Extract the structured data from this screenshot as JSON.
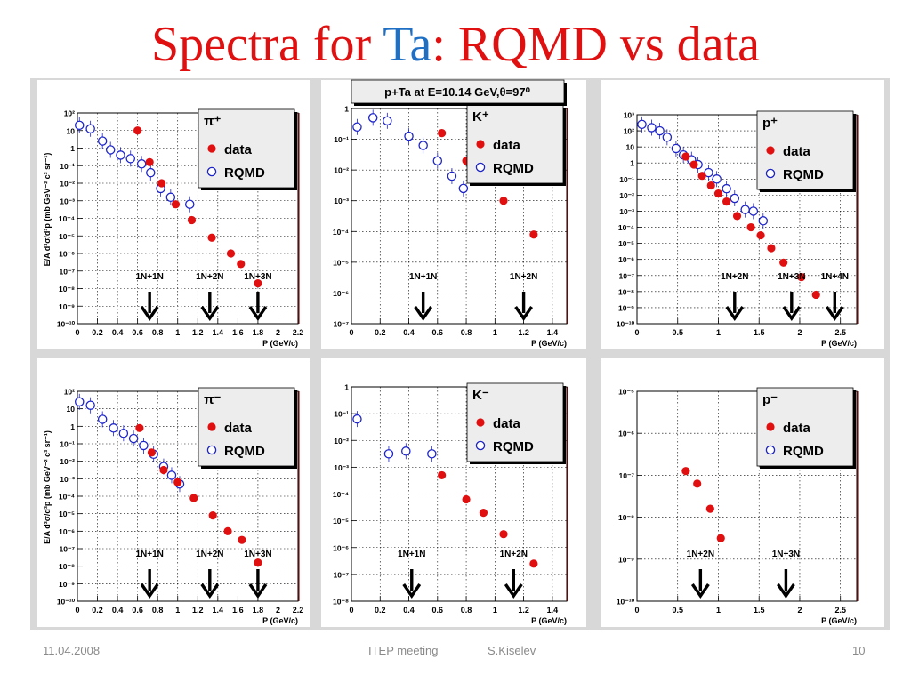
{
  "slide": {
    "title_pre": "Spectra for ",
    "title_ta": "Ta",
    "title_post": ": RQMD vs data",
    "energy_banner": "p+Ta at E=10.14 GeV,θ=97⁰",
    "footer": {
      "date": "11.04.2008",
      "meeting": "ITEP meeting",
      "author": "S.Kiselev",
      "page": "10"
    }
  },
  "colors": {
    "data": "#e01010",
    "rqmd": "#1d24c8",
    "title": "#e01010",
    "ta": "#1f6fc4"
  },
  "chart_data": [
    {
      "type": "scatter",
      "particle": "π⁺",
      "log_y": true,
      "xlim": [
        0,
        2.2
      ],
      "ylim_exp": [
        -10,
        2
      ],
      "xticks": [
        "0",
        "0.2",
        "0.4",
        "0.6",
        "0.8",
        "1",
        "1.2",
        "1.4",
        "1.6",
        "1.8",
        "2",
        "2.2"
      ],
      "xtick_vals": [
        0,
        0.2,
        0.4,
        0.6,
        0.8,
        1,
        1.2,
        1.4,
        1.6,
        1.8,
        2,
        2.2
      ],
      "ylabel": "E/A d³σ/d³p (mb GeV⁻² c³ sr⁻¹)",
      "xlabel": "P (GeV/c)",
      "legend_title": "π⁺",
      "legend_data": "data",
      "legend_rqmd": "RQMD",
      "data": [
        [
          0.6,
          1.0
        ],
        [
          0.72,
          -0.8
        ],
        [
          0.84,
          -2.0
        ],
        [
          0.98,
          -3.2
        ],
        [
          1.14,
          -4.1
        ],
        [
          1.34,
          -5.1
        ],
        [
          1.53,
          -6.0
        ],
        [
          1.63,
          -6.6
        ],
        [
          1.8,
          -7.7
        ]
      ],
      "rqmd": [
        [
          0.02,
          1.3
        ],
        [
          0.13,
          1.1
        ],
        [
          0.25,
          0.4
        ],
        [
          0.33,
          -0.1
        ],
        [
          0.43,
          -0.4
        ],
        [
          0.53,
          -0.6
        ],
        [
          0.64,
          -0.9
        ],
        [
          0.73,
          -1.4
        ],
        [
          0.83,
          -2.3
        ],
        [
          0.93,
          -2.8
        ],
        [
          1.12,
          -3.2
        ]
      ],
      "thresholds": [
        {
          "label": "1N+1N",
          "x": 0.72
        },
        {
          "label": "1N+2N",
          "x": 1.32
        },
        {
          "label": "1N+3N",
          "x": 1.8
        }
      ]
    },
    {
      "type": "scatter",
      "particle": "K⁺",
      "log_y": true,
      "xlim": [
        0,
        1.5
      ],
      "ylim_exp": [
        -7,
        0
      ],
      "xticks": [
        "0",
        "0.2",
        "0.4",
        "0.6",
        "0.8",
        "1",
        "1.2",
        "1.4"
      ],
      "xtick_vals": [
        0,
        0.2,
        0.4,
        0.6,
        0.8,
        1,
        1.2,
        1.4
      ],
      "ylabel": "",
      "xlabel": "P (GeV/c)",
      "legend_title": "K⁺",
      "legend_data": "data",
      "legend_rqmd": "RQMD",
      "data": [
        [
          0.63,
          -0.8
        ],
        [
          0.8,
          -1.7
        ],
        [
          0.92,
          -2.2
        ],
        [
          1.06,
          -3.0
        ],
        [
          1.27,
          -4.1
        ]
      ],
      "rqmd": [
        [
          0.04,
          -0.6
        ],
        [
          0.15,
          -0.3
        ],
        [
          0.25,
          -0.4
        ],
        [
          0.4,
          -0.9
        ],
        [
          0.5,
          -1.2
        ],
        [
          0.6,
          -1.7
        ],
        [
          0.7,
          -2.2
        ],
        [
          0.78,
          -2.6
        ]
      ],
      "thresholds": [
        {
          "label": "1N+1N",
          "x": 0.5
        },
        {
          "label": "1N+2N",
          "x": 1.2
        }
      ]
    },
    {
      "type": "scatter",
      "particle": "p⁺",
      "log_y": true,
      "xlim": [
        0,
        2.7
      ],
      "ylim_exp": [
        -10,
        3
      ],
      "xticks": [
        "0",
        "0.5",
        "1",
        "1.5",
        "2",
        "2.5"
      ],
      "xtick_vals": [
        0,
        0.5,
        1,
        1.5,
        2,
        2.5
      ],
      "ylabel": "",
      "xlabel": "P (GeV/c)",
      "legend_title": "p⁺",
      "legend_data": "data",
      "legend_rqmd": "RQMD",
      "data": [
        [
          0.6,
          0.4
        ],
        [
          0.7,
          -0.1
        ],
        [
          0.8,
          -0.8
        ],
        [
          0.91,
          -1.4
        ],
        [
          1.0,
          -1.9
        ],
        [
          1.1,
          -2.4
        ],
        [
          1.23,
          -3.3
        ],
        [
          1.4,
          -4.0
        ],
        [
          1.52,
          -4.5
        ],
        [
          1.65,
          -5.3
        ],
        [
          1.8,
          -6.2
        ],
        [
          2.02,
          -7.1
        ],
        [
          2.2,
          -8.2
        ]
      ],
      "rqmd": [
        [
          0.06,
          2.4
        ],
        [
          0.18,
          2.2
        ],
        [
          0.28,
          2.0
        ],
        [
          0.37,
          1.6
        ],
        [
          0.48,
          0.9
        ],
        [
          0.57,
          0.5
        ],
        [
          0.67,
          0.2
        ],
        [
          0.75,
          -0.1
        ],
        [
          0.88,
          -0.6
        ],
        [
          0.98,
          -1.0
        ],
        [
          1.1,
          -1.6
        ],
        [
          1.2,
          -2.2
        ],
        [
          1.33,
          -2.9
        ],
        [
          1.43,
          -3.0
        ],
        [
          1.55,
          -3.6
        ]
      ],
      "thresholds": [
        {
          "label": "1N+2N",
          "x": 1.2
        },
        {
          "label": "1N+3N",
          "x": 1.9
        },
        {
          "label": "1N+4N",
          "x": 2.43
        }
      ]
    },
    {
      "type": "scatter",
      "particle": "π⁻",
      "log_y": true,
      "xlim": [
        0,
        2.2
      ],
      "ylim_exp": [
        -10,
        2
      ],
      "xticks": [
        "0",
        "0.2",
        "0.4",
        "0.6",
        "0.8",
        "1",
        "1.2",
        "1.4",
        "1.6",
        "1.8",
        "2",
        "2.2"
      ],
      "xtick_vals": [
        0,
        0.2,
        0.4,
        0.6,
        0.8,
        1,
        1.2,
        1.4,
        1.6,
        1.8,
        2,
        2.2
      ],
      "ylabel": "E/A d³σ/d³p (mb GeV⁻² c³ sr⁻¹)",
      "xlabel": "P (GeV/c)",
      "legend_title": "π⁻",
      "legend_data": "data",
      "legend_rqmd": "RQMD",
      "data": [
        [
          0.62,
          -0.1
        ],
        [
          0.74,
          -1.5
        ],
        [
          0.86,
          -2.5
        ],
        [
          1.0,
          -3.2
        ],
        [
          1.16,
          -4.1
        ],
        [
          1.35,
          -5.1
        ],
        [
          1.5,
          -6.0
        ],
        [
          1.64,
          -6.5
        ],
        [
          1.8,
          -7.8
        ]
      ],
      "rqmd": [
        [
          0.02,
          1.4
        ],
        [
          0.13,
          1.2
        ],
        [
          0.25,
          0.4
        ],
        [
          0.36,
          -0.1
        ],
        [
          0.46,
          -0.4
        ],
        [
          0.56,
          -0.7
        ],
        [
          0.66,
          -1.1
        ],
        [
          0.76,
          -1.6
        ],
        [
          0.86,
          -2.3
        ],
        [
          0.94,
          -2.8
        ],
        [
          1.02,
          -3.3
        ]
      ],
      "thresholds": [
        {
          "label": "1N+1N",
          "x": 0.72
        },
        {
          "label": "1N+2N",
          "x": 1.32
        },
        {
          "label": "1N+3N",
          "x": 1.8
        }
      ]
    },
    {
      "type": "scatter",
      "particle": "K⁻",
      "log_y": true,
      "xlim": [
        0,
        1.5
      ],
      "ylim_exp": [
        -8,
        0
      ],
      "xticks": [
        "0",
        "0.2",
        "0.4",
        "0.6",
        "0.8",
        "1",
        "1.2",
        "1.4"
      ],
      "xtick_vals": [
        0,
        0.2,
        0.4,
        0.6,
        0.8,
        1,
        1.2,
        1.4
      ],
      "ylabel": "",
      "xlabel": "P (GeV/c)",
      "legend_title": "K⁻",
      "legend_data": "data",
      "legend_rqmd": "RQMD",
      "data": [
        [
          0.63,
          -3.3
        ],
        [
          0.8,
          -4.2
        ],
        [
          0.92,
          -4.7
        ],
        [
          1.06,
          -5.5
        ],
        [
          1.27,
          -6.6
        ]
      ],
      "rqmd": [
        [
          0.04,
          -1.2
        ],
        [
          0.26,
          -2.5
        ],
        [
          0.38,
          -2.4
        ],
        [
          0.56,
          -2.5
        ]
      ],
      "thresholds": [
        {
          "label": "1N+1N",
          "x": 0.42
        },
        {
          "label": "1N+2N",
          "x": 1.13
        }
      ]
    },
    {
      "type": "scatter",
      "particle": "p⁻",
      "log_y": true,
      "xlim": [
        0,
        2.7
      ],
      "ylim_exp": [
        -10,
        -5
      ],
      "xticks": [
        "0",
        "0.5",
        "1",
        "1.5",
        "2",
        "2.5"
      ],
      "xtick_vals": [
        0,
        0.5,
        1,
        1.5,
        2,
        2.5
      ],
      "ylabel": "",
      "xlabel": "P (GeV/c)",
      "legend_title": "p⁻",
      "legend_data": "data",
      "legend_rqmd": "RQMD",
      "data": [
        [
          0.6,
          -6.9
        ],
        [
          0.74,
          -7.2
        ],
        [
          0.9,
          -7.8
        ],
        [
          1.03,
          -8.5
        ]
      ],
      "rqmd": [],
      "thresholds": [
        {
          "label": "1N+2N",
          "x": 0.78
        },
        {
          "label": "1N+3N",
          "x": 1.83
        }
      ]
    }
  ]
}
